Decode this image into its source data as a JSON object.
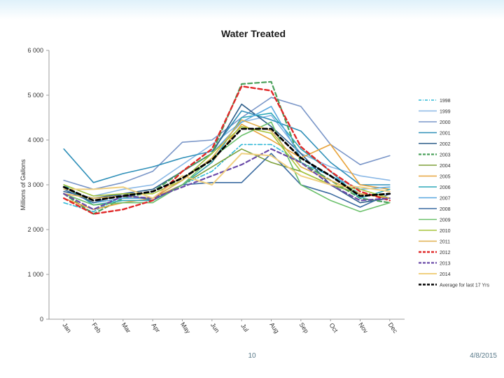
{
  "slide": {
    "number": "10",
    "date": "4/8/2015"
  },
  "colors": {
    "axis": "#9e9e9e",
    "text": "#333333",
    "title": "#1a1a1a"
  },
  "chart_data": {
    "type": "line",
    "title": "Water Treated",
    "ylabel": "Millions of Gallons",
    "xlabel": "",
    "ylim": [
      0,
      6000
    ],
    "yticks": [
      0,
      1000,
      2000,
      3000,
      4000,
      5000,
      6000
    ],
    "ytick_labels": [
      "0",
      "1 000",
      "2 000",
      "3 000",
      "4 000",
      "5 000",
      "6 000"
    ],
    "categories": [
      "Jan",
      "Feb",
      "Mar",
      "Apr",
      "May",
      "Jun",
      "Jul",
      "Aug",
      "Sep",
      "Oct",
      "Nov",
      "Dec"
    ],
    "grid": false,
    "legend_position": "right",
    "series": [
      {
        "name": "1998",
        "color": "#2eb8d6",
        "dash": "dashdot",
        "width": 1.6,
        "values": [
          2600,
          2400,
          2750,
          2700,
          3000,
          3300,
          3900,
          3900,
          3500,
          3200,
          2800,
          2700
        ]
      },
      {
        "name": "1999",
        "color": "#8ab8e6",
        "dash": "solid",
        "width": 1.6,
        "values": [
          3000,
          2750,
          2900,
          3000,
          3450,
          3900,
          4400,
          4550,
          3700,
          3400,
          3200,
          3100
        ]
      },
      {
        "name": "2000",
        "color": "#7a96c8",
        "dash": "solid",
        "width": 1.6,
        "values": [
          3100,
          2900,
          3050,
          3300,
          3950,
          4000,
          4500,
          4950,
          4750,
          3900,
          3450,
          3650
        ]
      },
      {
        "name": "2001",
        "color": "#2e8fb8",
        "dash": "solid",
        "width": 1.6,
        "values": [
          3800,
          3050,
          3250,
          3400,
          3600,
          3750,
          4650,
          4450,
          4200,
          3500,
          3000,
          3000
        ]
      },
      {
        "name": "2002",
        "color": "#2f5f8a",
        "dash": "solid",
        "width": 1.6,
        "values": [
          2850,
          2700,
          2800,
          2900,
          3300,
          3700,
          4800,
          4300,
          3700,
          3000,
          2600,
          2700
        ]
      },
      {
        "name": "2003",
        "color": "#4aa05a",
        "dash": "dash",
        "width": 2.2,
        "values": [
          2800,
          2350,
          2700,
          2850,
          3300,
          3700,
          5250,
          5300,
          3500,
          3100,
          2700,
          2600
        ]
      },
      {
        "name": "2004",
        "color": "#7ea03a",
        "dash": "solid",
        "width": 1.6,
        "values": [
          2950,
          2600,
          2700,
          2700,
          3000,
          3400,
          3800,
          3500,
          3300,
          3000,
          2800,
          2700
        ]
      },
      {
        "name": "2005",
        "color": "#e8a33a",
        "dash": "solid",
        "width": 1.6,
        "values": [
          2700,
          2450,
          2600,
          2700,
          3000,
          3500,
          4350,
          4000,
          3600,
          3900,
          3000,
          2900
        ]
      },
      {
        "name": "2006",
        "color": "#2fa8b8",
        "dash": "solid",
        "width": 1.6,
        "values": [
          3000,
          2550,
          2650,
          2650,
          3000,
          3500,
          4500,
          4600,
          3800,
          3300,
          2700,
          2900
        ]
      },
      {
        "name": "2007",
        "color": "#5aa8e0",
        "dash": "solid",
        "width": 1.6,
        "values": [
          2900,
          2600,
          2700,
          2700,
          3100,
          3700,
          4400,
          4750,
          3600,
          3200,
          2900,
          2950
        ]
      },
      {
        "name": "2008",
        "color": "#3a6aa0",
        "dash": "solid",
        "width": 1.6,
        "values": [
          2900,
          2600,
          2800,
          2650,
          3000,
          3050,
          3050,
          3700,
          3000,
          2800,
          2500,
          2800
        ]
      },
      {
        "name": "2009",
        "color": "#6ac06a",
        "dash": "solid",
        "width": 1.6,
        "values": [
          2800,
          2550,
          2600,
          2600,
          3000,
          3600,
          4100,
          4400,
          3000,
          2650,
          2400,
          2600
        ]
      },
      {
        "name": "2010",
        "color": "#a6c43a",
        "dash": "solid",
        "width": 1.6,
        "values": [
          3000,
          2750,
          2800,
          2800,
          3100,
          3700,
          4300,
          4150,
          3300,
          3000,
          2900,
          2700
        ]
      },
      {
        "name": "2011",
        "color": "#e0b050",
        "dash": "solid",
        "width": 1.6,
        "values": [
          2800,
          2700,
          2750,
          2700,
          3100,
          3600,
          4450,
          4200,
          3400,
          3100,
          2800,
          2700
        ]
      },
      {
        "name": "2012",
        "color": "#e02828",
        "dash": "dash",
        "width": 2.4,
        "values": [
          2700,
          2350,
          2450,
          2650,
          3300,
          3800,
          5200,
          5100,
          3850,
          3300,
          2850,
          2650
        ]
      },
      {
        "name": "2013",
        "color": "#6a4aa8",
        "dash": "dash",
        "width": 2.2,
        "values": [
          2800,
          2450,
          2750,
          2700,
          2950,
          3200,
          3450,
          3800,
          3500,
          3000,
          2650,
          2700
        ]
      },
      {
        "name": "2014",
        "color": "#f0d080",
        "dash": "solid",
        "width": 2.0,
        "values": [
          2900,
          2900,
          2950,
          2700,
          3200,
          3000,
          3700,
          3650,
          3200,
          3000,
          2950,
          2850
        ]
      },
      {
        "name": "Average for last 17 Yrs",
        "color": "#000000",
        "dash": "dash",
        "width": 2.8,
        "values": [
          2950,
          2650,
          2750,
          2850,
          3150,
          3550,
          4250,
          4250,
          3600,
          3200,
          2750,
          2800
        ]
      }
    ]
  }
}
